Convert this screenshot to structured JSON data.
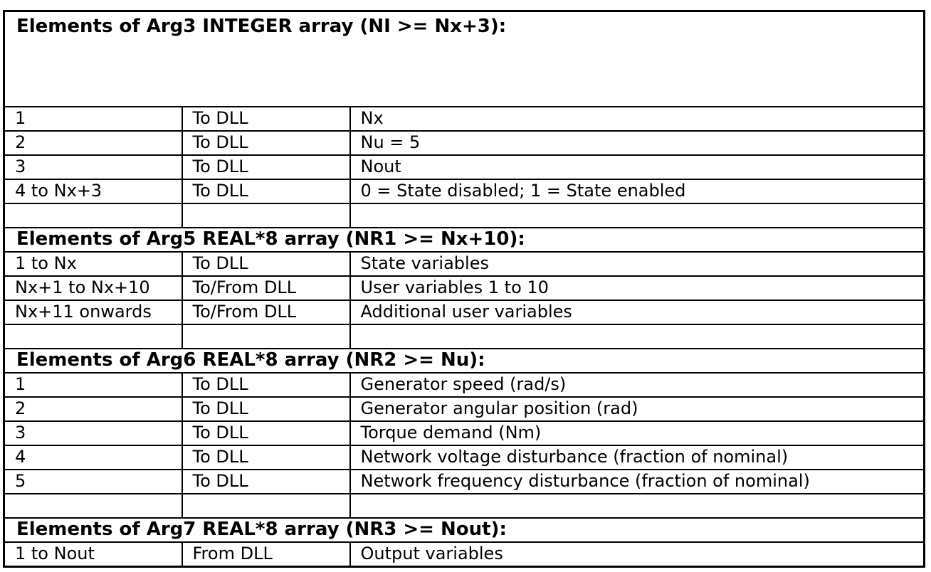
{
  "colors": {
    "border": "#000000",
    "text": "#000000",
    "background": "#ffffff"
  },
  "table": {
    "sections": [
      {
        "header": "Elements of Arg3 INTEGER array (NI >= Nx+3):",
        "rows": [
          [
            "1",
            "To DLL",
            "Nx"
          ],
          [
            "2",
            "To DLL",
            "Nu = 5"
          ],
          [
            "3",
            "To DLL",
            "Nout"
          ],
          [
            "4 to Nx+3",
            "To DLL",
            "0 = State disabled; 1 = State enabled"
          ]
        ]
      },
      {
        "header": "Elements of Arg5 REAL*8 array (NR1 >= Nx+10):",
        "rows": [
          [
            "1 to Nx",
            "To DLL",
            "State variables"
          ],
          [
            "Nx+1 to Nx+10",
            "To/From DLL",
            "User variables 1 to 10"
          ],
          [
            "Nx+11 onwards",
            "To/From DLL",
            "Additional user variables"
          ]
        ]
      },
      {
        "header": "Elements of Arg6 REAL*8 array (NR2 >= Nu):",
        "rows": [
          [
            "1",
            "To DLL",
            "Generator speed (rad/s)"
          ],
          [
            "2",
            "To DLL",
            "Generator angular position (rad)"
          ],
          [
            "3",
            "To DLL",
            "Torque demand (Nm)"
          ],
          [
            "4",
            "To DLL",
            "Network voltage disturbance (fraction of nominal)"
          ],
          [
            "5",
            "To DLL",
            "Network frequency disturbance (fraction of nominal)"
          ]
        ]
      },
      {
        "header": "Elements of Arg7 REAL*8 array (NR3 >= Nout):",
        "rows": [
          [
            "1 to Nout",
            "From DLL",
            "Output variables"
          ]
        ]
      }
    ]
  }
}
